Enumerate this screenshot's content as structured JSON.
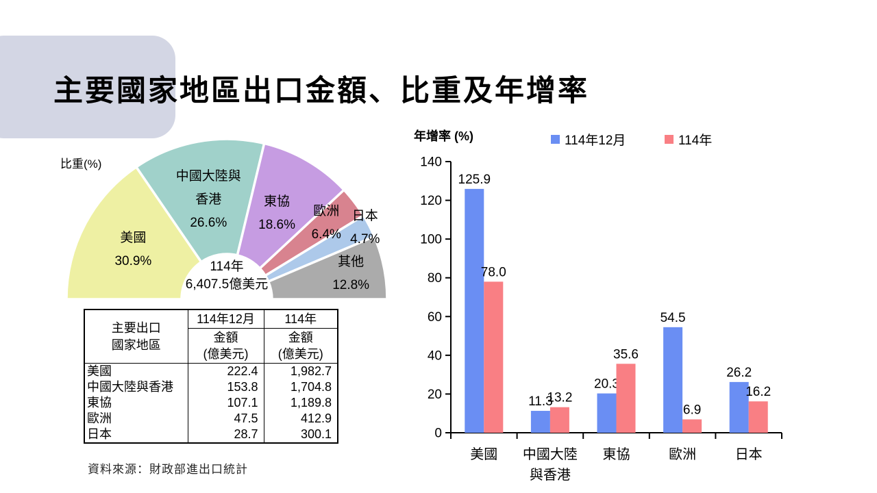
{
  "slide": {
    "title": "主要國家地區出口金額、比重及年增率",
    "source_note": "資料來源：財政部進出口統計"
  },
  "chart_data": [
    {
      "type": "pie",
      "variant": "half-donut",
      "title": "比重(%)",
      "center_label": [
        "114年",
        "6,407.5億美元"
      ],
      "slices": [
        {
          "label": "美國",
          "lines": [
            "美國"
          ],
          "pct_label": "30.9%",
          "value": 30.9,
          "color": "#eef0a3",
          "label_radius": 0.66
        },
        {
          "label": "中國大陸與香港",
          "lines": [
            "中國大陸與",
            "香港"
          ],
          "pct_label": "26.6%",
          "value": 26.6,
          "color": "#a0d1ca",
          "label_radius": 0.63
        },
        {
          "label": "東協",
          "lines": [
            "東協"
          ],
          "pct_label": "18.6%",
          "value": 18.6,
          "color": "#c69ce2",
          "label_radius": 0.62
        },
        {
          "label": "歐洲",
          "lines": [
            "歐洲"
          ],
          "pct_label": "6.4%",
          "value": 6.4,
          "color": "#d8838f",
          "label_radius": 0.78
        },
        {
          "label": "日本",
          "lines": [
            "日本"
          ],
          "pct_label": "4.7%",
          "value": 4.7,
          "color": "#adc9ea",
          "label_radius": 0.97
        },
        {
          "label": "其他",
          "lines": [
            "其他"
          ],
          "pct_label": "12.8%",
          "value": 12.8,
          "color": "#ababab",
          "label_radius": 0.79
        }
      ]
    },
    {
      "type": "bar",
      "title": "年增率 (%)",
      "categories": [
        [
          "美國"
        ],
        [
          "中國大陸",
          "與香港"
        ],
        [
          "東協"
        ],
        [
          "歐洲"
        ],
        [
          "日本"
        ]
      ],
      "series": [
        {
          "name": "114年12月",
          "color": "#6a8ef3",
          "values": [
            125.9,
            11.3,
            20.3,
            54.5,
            26.2
          ]
        },
        {
          "name": "114年",
          "color": "#f97f84",
          "values": [
            78.0,
            13.2,
            35.6,
            6.9,
            16.2
          ]
        }
      ],
      "ylim": [
        0,
        140
      ],
      "ytick_step": 20,
      "legend_position": "top",
      "grid": false
    }
  ],
  "table": {
    "row_header_title": [
      "主要出口",
      "國家地區"
    ],
    "col_group_headers": [
      "114年12月",
      "114年"
    ],
    "sub_header": [
      "金額",
      "(億美元)"
    ],
    "rows": [
      [
        "美國",
        "222.4",
        "1,982.7"
      ],
      [
        "中國大陸與香港",
        "153.8",
        "1,704.8"
      ],
      [
        "東協",
        "107.1",
        "1,189.8"
      ],
      [
        "歐洲",
        "47.5",
        "412.9"
      ],
      [
        "日本",
        "28.7",
        "300.1"
      ]
    ]
  }
}
